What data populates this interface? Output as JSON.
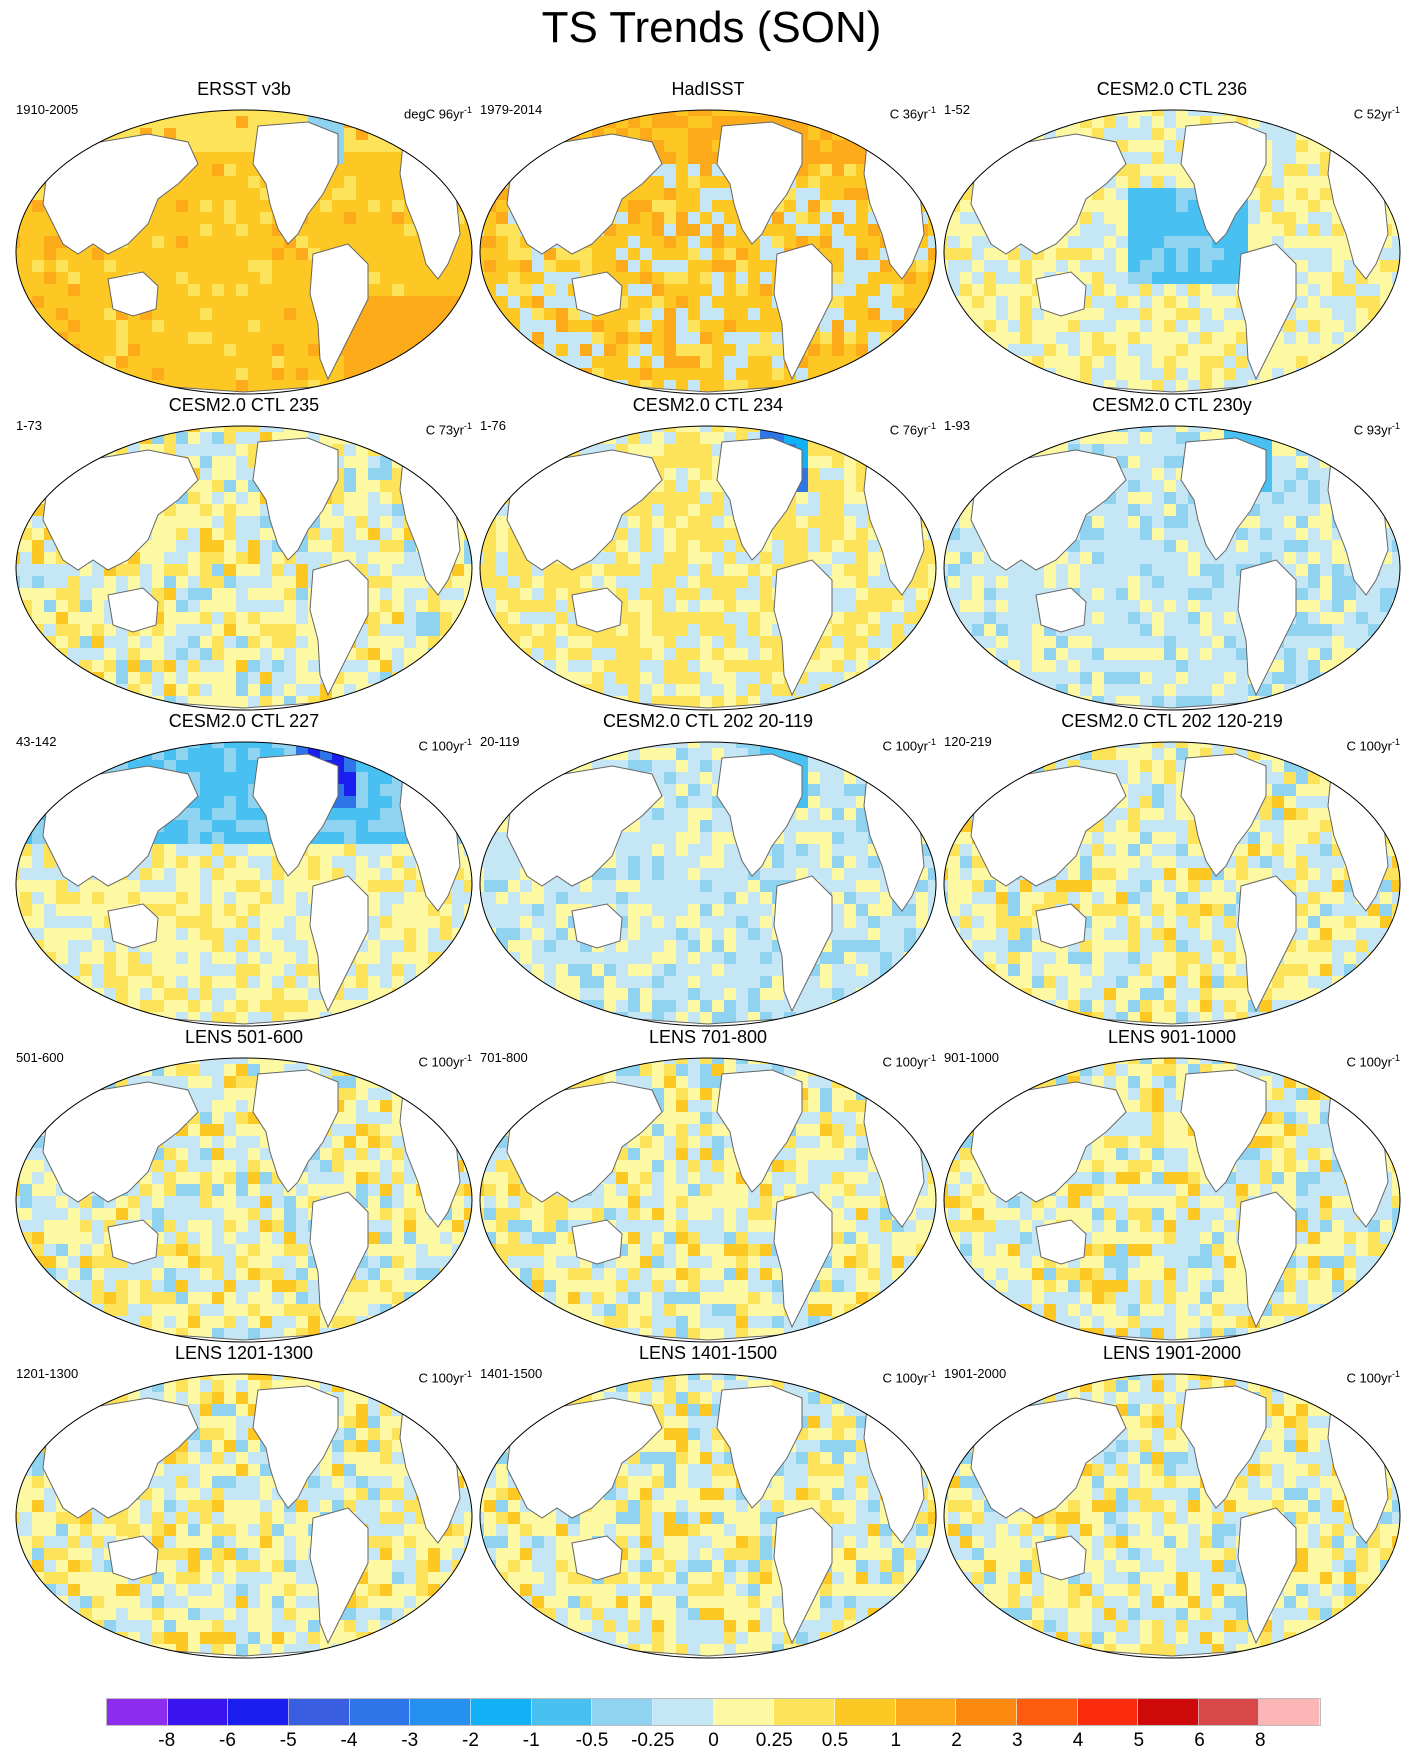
{
  "title": "TS Trends (SON)",
  "panels": [
    {
      "title": "ERSST v3b",
      "period": "1910-2005",
      "units": "degC 96yr",
      "units_sup": "-1",
      "pattern": "warm"
    },
    {
      "title": "HadISST",
      "period": "1979-2014",
      "units": "C 36yr",
      "units_sup": "-1",
      "pattern": "mixed_warm"
    },
    {
      "title": "CESM2.0 CTL 236",
      "period": "1-52",
      "units": "C 52yr",
      "units_sup": "-1",
      "pattern": "cool_pacific"
    },
    {
      "title": "CESM2.0 CTL 235",
      "period": "1-73",
      "units": "C 73yr",
      "units_sup": "-1",
      "pattern": "mixed"
    },
    {
      "title": "CESM2.0 CTL 234",
      "period": "1-76",
      "units": "C 76yr",
      "units_sup": "-1",
      "pattern": "mixed_atlcool"
    },
    {
      "title": "CESM2.0 CTL 230y",
      "period": "1-93",
      "units": "C 93yr",
      "units_sup": "-1",
      "pattern": "mostly_cool"
    },
    {
      "title": "CESM2.0 CTL 227",
      "period": "43-142",
      "units": "C 100yr",
      "units_sup": "-1",
      "pattern": "cool_north"
    },
    {
      "title": "CESM2.0 CTL 202 20-119",
      "period": "20-119",
      "units": "C 100yr",
      "units_sup": "-1",
      "pattern": "mostly_cool"
    },
    {
      "title": "CESM2.0 CTL 202 120-219",
      "period": "120-219",
      "units": "C 100yr",
      "units_sup": "-1",
      "pattern": "mixed"
    },
    {
      "title": "LENS 501-600",
      "period": "501-600",
      "units": "C 100yr",
      "units_sup": "-1",
      "pattern": "mixed"
    },
    {
      "title": "LENS 701-800",
      "period": "701-800",
      "units": "C 100yr",
      "units_sup": "-1",
      "pattern": "mixed"
    },
    {
      "title": "LENS 901-1000",
      "period": "901-1000",
      "units": "C 100yr",
      "units_sup": "-1",
      "pattern": "mixed"
    },
    {
      "title": "LENS 1201-1300",
      "period": "1201-1300",
      "units": "C 100yr",
      "units_sup": "-1",
      "pattern": "mixed"
    },
    {
      "title": "LENS 1401-1500",
      "period": "1401-1500",
      "units": "C 100yr",
      "units_sup": "-1",
      "pattern": "mixed"
    },
    {
      "title": "LENS 1901-2000",
      "period": "1901-2000",
      "units": "C 100yr",
      "units_sup": "-1",
      "pattern": "mixed"
    }
  ],
  "colorbar": {
    "colors": [
      "#8c2ded",
      "#3914ee",
      "#1a1ff0",
      "#3a5ee0",
      "#2f75ea",
      "#2590f0",
      "#12b0f5",
      "#48c0f2",
      "#8fd3f0",
      "#c4e6f5",
      "#fdf8a2",
      "#fde35a",
      "#fdc824",
      "#fdab1b",
      "#fd8a10",
      "#fc5b10",
      "#fa2a0c",
      "#ce0a0a",
      "#d94848",
      "#fdb6b6"
    ],
    "labels": [
      "-8",
      "-6",
      "-5",
      "-4",
      "-3",
      "-2",
      "-1",
      "-0.5",
      "-0.25",
      "0",
      "0.25",
      "0.5",
      "1",
      "2",
      "3",
      "4",
      "5",
      "6",
      "8"
    ]
  }
}
